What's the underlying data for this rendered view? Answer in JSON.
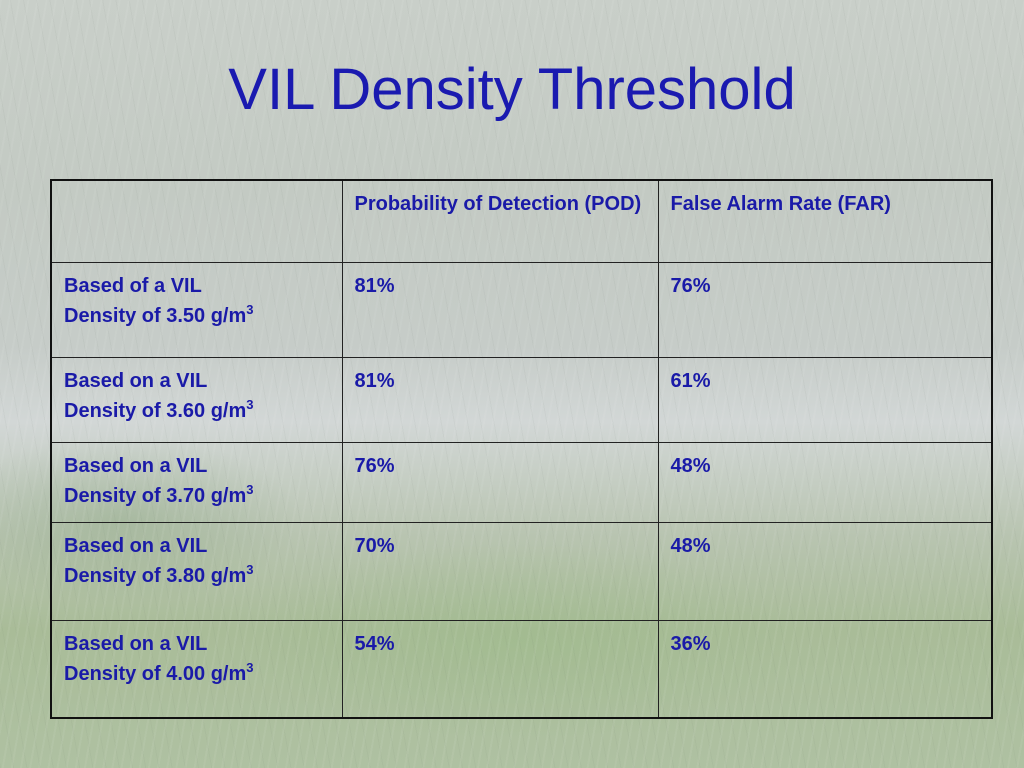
{
  "slide": {
    "title": "VIL Density Threshold"
  },
  "table": {
    "headers": [
      "",
      "Probability of Detection (POD)",
      "False Alarm Rate (FAR)"
    ],
    "rows": [
      {
        "label_line1": "Based of a VIL",
        "label_line2": "Density of 3.50 g/m",
        "unit_sup": "3",
        "pod": "81%",
        "far": "76%"
      },
      {
        "label_line1": "Based on a VIL",
        "label_line2": "Density of 3.60 g/m",
        "unit_sup": "3",
        "pod": "81%",
        "far": "61%"
      },
      {
        "label_line1": "Based on a VIL",
        "label_line2": "Density of 3.70 g/m",
        "unit_sup": "3",
        "pod": "76%",
        "far": "48%"
      },
      {
        "label_line1": "Based on a VIL",
        "label_line2": "Density of 3.80 g/m",
        "unit_sup": "3",
        "pod": "70%",
        "far": "48%"
      },
      {
        "label_line1": "Based on a VIL",
        "label_line2": "Density of 4.00 g/m",
        "unit_sup": "3",
        "pod": "54%",
        "far": "36%"
      }
    ]
  },
  "colors": {
    "title": "#1a1ab0",
    "table_text": "#1a1aa8",
    "border": "#222222"
  }
}
